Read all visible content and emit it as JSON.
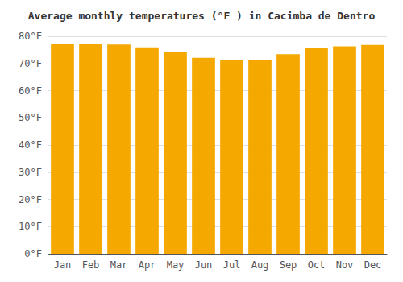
{
  "chart_data": {
    "type": "bar",
    "title": "Average monthly temperatures (°F ) in Cacimba de Dentro",
    "categories": [
      "Jan",
      "Feb",
      "Mar",
      "Apr",
      "May",
      "Jun",
      "Jul",
      "Aug",
      "Sep",
      "Oct",
      "Nov",
      "Dec"
    ],
    "values": [
      77.2,
      77.2,
      77.0,
      75.9,
      74.1,
      72.1,
      71.1,
      71.1,
      73.4,
      75.7,
      76.3,
      76.8
    ],
    "color": "#F5A800",
    "ylim": [
      0,
      80
    ],
    "yticks": [
      {
        "value": 0,
        "label": "0°F"
      },
      {
        "value": 10,
        "label": "10°F"
      },
      {
        "value": 20,
        "label": "20°F"
      },
      {
        "value": 30,
        "label": "30°F"
      },
      {
        "value": 40,
        "label": "40°F"
      },
      {
        "value": 50,
        "label": "50°F"
      },
      {
        "value": 60,
        "label": "60°F"
      },
      {
        "value": 70,
        "label": "70°F"
      },
      {
        "value": 80,
        "label": "80°F"
      }
    ],
    "grid": true
  }
}
